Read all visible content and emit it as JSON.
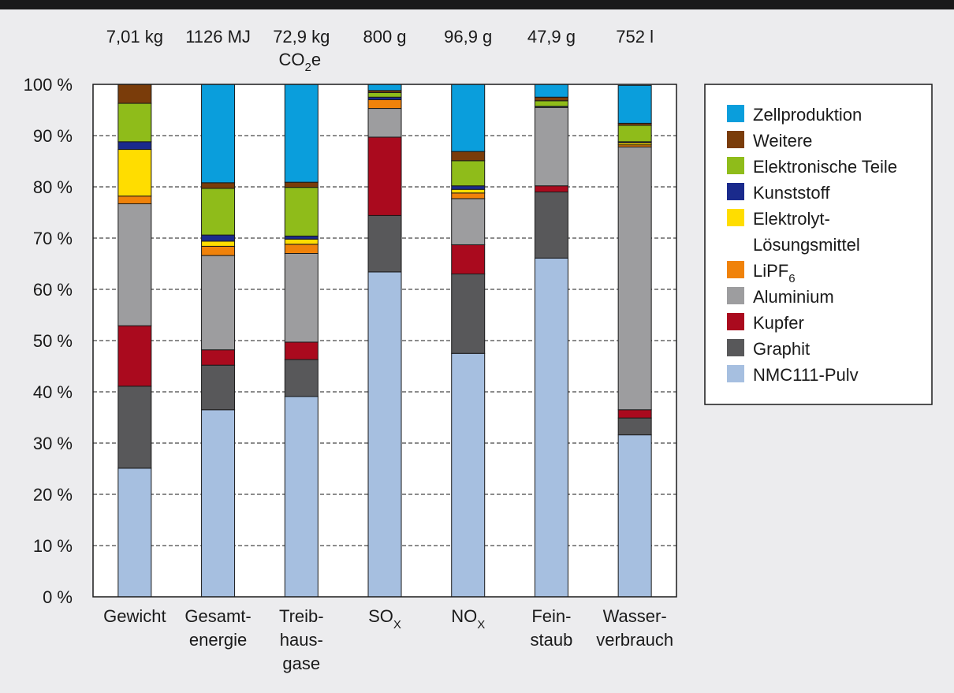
{
  "chart_data": {
    "type": "bar",
    "stacked": true,
    "ylim": [
      0,
      100
    ],
    "y_ticks": [
      "0 %",
      "10 %",
      "20 %",
      "30 %",
      "40 %",
      "50 %",
      "60 %",
      "70 %",
      "80 %",
      "90 %",
      "100 %"
    ],
    "grid": "horizontal dashed",
    "legend_position": "right",
    "categories": [
      {
        "label": [
          "Gewicht"
        ],
        "total": [
          "7,01 kg"
        ]
      },
      {
        "label": [
          "Gesamt-",
          "energie"
        ],
        "total": [
          "1126 MJ"
        ]
      },
      {
        "label": [
          "Treib-",
          "haus-",
          "gase"
        ],
        "total": [
          "72,9 kg",
          "CO",
          "2",
          "e"
        ]
      },
      {
        "label": [
          "SO",
          "X"
        ],
        "total": [
          "800 g"
        ]
      },
      {
        "label": [
          "NO",
          "X"
        ],
        "total": [
          "96,9 g"
        ]
      },
      {
        "label": [
          "Fein-",
          "staub"
        ],
        "total": [
          "47,9 g"
        ]
      },
      {
        "label": [
          "Wasser-",
          "verbrauch"
        ],
        "total": [
          "752 l"
        ]
      }
    ],
    "series": [
      {
        "name": "NMC111-Pulv",
        "color": "#a6bfe0",
        "values": [
          25.1,
          36.5,
          39.1,
          63.4,
          47.5,
          66.1,
          31.6
        ]
      },
      {
        "name": "Graphit",
        "color": "#58585a",
        "values": [
          16.0,
          8.7,
          7.2,
          11.0,
          15.5,
          12.9,
          3.3
        ]
      },
      {
        "name": "Kupfer",
        "color": "#aa0a1e",
        "values": [
          11.8,
          3.0,
          3.4,
          15.3,
          5.7,
          1.2,
          1.6
        ]
      },
      {
        "name": "Aluminium",
        "color": "#9d9d9f",
        "values": [
          23.8,
          18.4,
          17.3,
          5.6,
          9.0,
          15.3,
          51.3
        ]
      },
      {
        "name": "LiPF",
        "sub": "6",
        "color": "#f0820a",
        "values": [
          1.5,
          1.8,
          1.8,
          1.7,
          1.1,
          0.0,
          0.4
        ]
      },
      {
        "name": "Elektrolyt-Lösungsmittel",
        "name_lines": [
          "Elektrolyt-",
          "Lösungsmittel"
        ],
        "color": "#ffdd00",
        "values": [
          9.1,
          1.0,
          1.0,
          0.0,
          0.7,
          0.0,
          0.4
        ]
      },
      {
        "name": "Kunststoff",
        "color": "#1a2a8c",
        "values": [
          1.5,
          1.2,
          0.6,
          0.5,
          0.7,
          0.2,
          0.2
        ]
      },
      {
        "name": "Elektronische Teile",
        "color": "#8fbc1a",
        "values": [
          7.5,
          9.1,
          9.5,
          0.9,
          4.9,
          1.1,
          3.2
        ]
      },
      {
        "name": "Weitere",
        "color": "#7a3c0a",
        "values": [
          3.7,
          1.1,
          1.0,
          0.4,
          1.8,
          0.7,
          0.4
        ]
      },
      {
        "name": "Zellproduktion",
        "color": "#0a9edc",
        "values": [
          0.0,
          19.2,
          19.1,
          1.2,
          13.1,
          2.5,
          7.4
        ]
      }
    ]
  }
}
